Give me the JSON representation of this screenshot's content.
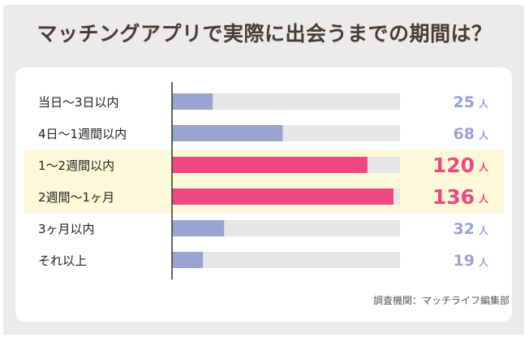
{
  "title": "マッチングアプリで実際に出会うまでの期間は？",
  "source": "調査機関：マッチライフ編集部",
  "unit": "人",
  "colors": {
    "frame_bg": "#ebebeb",
    "title": "#4a3b37",
    "normal_bar": "#98a3d2",
    "highlight_bar": "#ef4782",
    "track": "#e6e6e6",
    "normal_value": "#98a3d2",
    "highlight_value": "#ef4782",
    "highlight_row": "#fdf9d8"
  },
  "chart_data": {
    "type": "bar",
    "orientation": "horizontal",
    "categories": [
      "当日〜3日以内",
      "4日〜1週間以内",
      "1〜2週間以内",
      "2週間〜1ヶ月",
      "3ヶ月以内",
      "それ以上"
    ],
    "values": [
      25,
      68,
      120,
      136,
      32,
      19
    ],
    "highlighted": [
      false,
      false,
      true,
      true,
      false,
      false
    ],
    "unit": "人",
    "xlim": [
      0,
      140
    ],
    "grid": false,
    "legend": "none"
  }
}
